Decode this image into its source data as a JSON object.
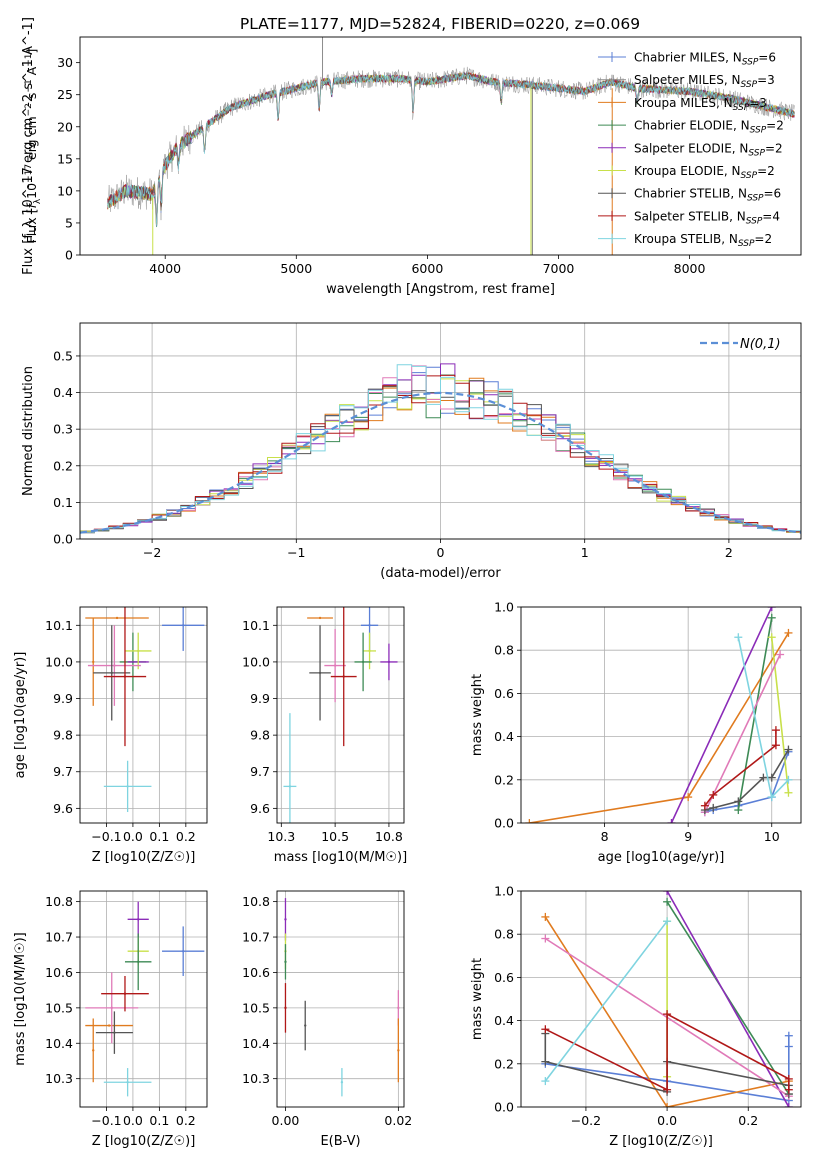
{
  "figure": {
    "title": "PLATE=1177, MJD=52824, FIBERID=0220, z=0.069",
    "colors": {
      "Chabrier MILES": "#5b7fd6",
      "Salpeter MILES": "#8c8c8c",
      "Kroupa MILES": "#e07b1f",
      "Chabrier ELODIE": "#3d8a55",
      "Salpeter ELODIE": "#8b2cb8",
      "Kroupa ELODIE": "#c8e04a",
      "Chabrier STELIB": "#555555",
      "Salpeter STELIB": "#b01818",
      "Kroupa STELIB": "#7fd4e0",
      "Pink series": "#e07ab8",
      "Normal curve": "#5b8fd6"
    }
  },
  "chart_data": [
    {
      "id": "spectrum",
      "type": "line",
      "xlabel": "wavelength [Angstrom, rest frame]",
      "ylabel": "Flux [f_λ 10^-17 erg cm^-2 s^-1 A^-1]",
      "xlim": [
        3350,
        8850
      ],
      "ylim": [
        0,
        34
      ],
      "xticks": [
        4000,
        5000,
        6000,
        7000,
        8000
      ],
      "yticks": [
        0,
        5,
        10,
        15,
        20,
        25,
        30
      ],
      "legend_position": "top-right",
      "legend": [
        {
          "model": "Chabrier MILES",
          "nssp": "6"
        },
        {
          "model": "Salpeter MILES",
          "nssp": "3"
        },
        {
          "model": "Kroupa MILES",
          "nssp": "3"
        },
        {
          "model": "Chabrier ELODIE",
          "nssp": "2"
        },
        {
          "model": "Salpeter ELODIE",
          "nssp": "2"
        },
        {
          "model": "Kroupa ELODIE",
          "nssp": "2"
        },
        {
          "model": "Chabrier STELIB",
          "nssp": "6"
        },
        {
          "model": "Salpeter STELIB",
          "nssp": "4"
        },
        {
          "model": "Kroupa STELIB",
          "nssp": "2"
        }
      ],
      "continuum": {
        "x": [
          3550,
          3700,
          3900,
          4000,
          4100,
          4300,
          4500,
          4800,
          5000,
          5200,
          5500,
          5800,
          6000,
          6300,
          6500,
          6800,
          7000,
          7200,
          7400,
          7600,
          8000,
          8300,
          8500,
          8800
        ],
        "y": [
          8,
          10,
          9.5,
          14,
          17,
          20,
          23,
          25,
          26,
          27,
          27.5,
          27.5,
          27,
          28,
          27,
          26.5,
          26,
          25.5,
          27,
          26,
          25.5,
          24.5,
          23.5,
          22
        ]
      }
    },
    {
      "id": "residuals",
      "type": "histogram",
      "xlabel": "(data-model)/error",
      "ylabel": "Normed distribution",
      "xlim": [
        -2.5,
        2.5
      ],
      "ylim": [
        0,
        0.59
      ],
      "xticks": [
        -2,
        -1,
        0,
        1,
        2
      ],
      "yticks": [
        0.0,
        0.1,
        0.2,
        0.3,
        0.4,
        0.5
      ],
      "grid": true,
      "legend_label": "N(0,1)",
      "legend_position": "top-right"
    },
    {
      "id": "age-vs-Z",
      "type": "scatter",
      "xlabel": "Z [log10(Z/Z☉)]",
      "ylabel": "age  [log10(age/yr)]",
      "xlim": [
        -0.2,
        0.28
      ],
      "ylim": [
        9.56,
        10.15
      ],
      "xticks": [
        -0.1,
        0.0,
        0.1,
        0.2
      ],
      "yticks": [
        9.6,
        9.7,
        9.8,
        9.9,
        10.0,
        10.1
      ],
      "grid": true,
      "points": [
        {
          "model": "Chabrier MILES",
          "x": 0.19,
          "y": 10.1,
          "xerr": 0.08,
          "yerr": 0.07
        },
        {
          "model": "Kroupa MILES",
          "x": -0.06,
          "y": 10.12,
          "xerr": 0.12,
          "yerr": 0.0
        },
        {
          "model": "Kroupa MILES",
          "x": -0.15,
          "y": 10.0,
          "xerr": 0.0,
          "yerr": 0.12
        },
        {
          "model": "Chabrier ELODIE",
          "x": 0.0,
          "y": 10.0,
          "xerr": 0.05,
          "yerr": 0.08
        },
        {
          "model": "Salpeter ELODIE",
          "x": 0.02,
          "y": 10.0,
          "xerr": 0.04,
          "yerr": 0.0
        },
        {
          "model": "Kroupa ELODIE",
          "x": 0.02,
          "y": 10.03,
          "xerr": 0.05,
          "yerr": 0.05
        },
        {
          "model": "Pink series",
          "x": -0.07,
          "y": 9.99,
          "xerr": 0.1,
          "yerr": 0.11
        },
        {
          "model": "Chabrier STELIB",
          "x": -0.08,
          "y": 9.97,
          "xerr": 0.07,
          "yerr": 0.13
        },
        {
          "model": "Salpeter STELIB",
          "x": -0.03,
          "y": 9.96,
          "xerr": 0.08,
          "yerr": 0.19
        },
        {
          "model": "Kroupa STELIB",
          "x": -0.02,
          "y": 9.66,
          "xerr": 0.09,
          "yerr": 0.07
        }
      ]
    },
    {
      "id": "age-vs-mass",
      "type": "scatter",
      "xlabel": "mass [log10(M/M☉)]",
      "xlim": [
        10.23,
        10.82
      ],
      "ylim": [
        9.56,
        10.15
      ],
      "xticks": [
        10.25,
        10.5,
        10.75
      ],
      "yticks": [
        9.6,
        9.7,
        9.8,
        9.9,
        10.0,
        10.1
      ],
      "grid": true,
      "points": [
        {
          "model": "Chabrier MILES",
          "x": 10.66,
          "y": 10.1,
          "xerr": 0.04,
          "yerr": 0.07
        },
        {
          "model": "Kroupa MILES",
          "x": 10.43,
          "y": 10.12,
          "xerr": 0.06,
          "yerr": 0.0
        },
        {
          "model": "Salpeter ELODIE",
          "x": 10.75,
          "y": 10.0,
          "xerr": 0.04,
          "yerr": 0.05
        },
        {
          "model": "Kroupa ELODIE",
          "x": 10.66,
          "y": 10.03,
          "xerr": 0.03,
          "yerr": 0.05
        },
        {
          "model": "Chabrier ELODIE",
          "x": 10.63,
          "y": 10.0,
          "xerr": 0.04,
          "yerr": 0.08
        },
        {
          "model": "Pink series",
          "x": 10.5,
          "y": 9.99,
          "xerr": 0.05,
          "yerr": 0.1
        },
        {
          "model": "Chabrier STELIB",
          "x": 10.43,
          "y": 9.97,
          "xerr": 0.05,
          "yerr": 0.13
        },
        {
          "model": "Salpeter STELIB",
          "x": 10.54,
          "y": 9.96,
          "xerr": 0.06,
          "yerr": 0.19
        },
        {
          "model": "Kroupa STELIB",
          "x": 10.29,
          "y": 9.66,
          "xerr": 0.03,
          "yerr": 0.2
        }
      ]
    },
    {
      "id": "weight-vs-age",
      "type": "line",
      "xlabel": "age  [log10(age/yr)]",
      "ylabel": "mass weight",
      "xlim": [
        7.0,
        10.35
      ],
      "ylim": [
        0,
        1.0
      ],
      "xticks": [
        8,
        9,
        10
      ],
      "yticks": [
        0.0,
        0.2,
        0.4,
        0.6,
        0.8,
        1.0
      ],
      "grid": true,
      "series": [
        {
          "model": "Chabrier MILES",
          "x": [
            9.2,
            9.3,
            9.6,
            10.0,
            10.2
          ],
          "y": [
            0.05,
            0.06,
            0.08,
            0.12,
            0.33
          ]
        },
        {
          "model": "Kroupa MILES",
          "x": [
            7.1,
            9.0,
            10.2
          ],
          "y": [
            0.0,
            0.12,
            0.88
          ]
        },
        {
          "model": "Chabrier ELODIE",
          "x": [
            9.6,
            10.0
          ],
          "y": [
            0.06,
            0.95
          ]
        },
        {
          "model": "Salpeter ELODIE",
          "x": [
            8.8,
            10.0
          ],
          "y": [
            0.0,
            1.0
          ]
        },
        {
          "model": "Kroupa ELODIE",
          "x": [
            10.0,
            10.2
          ],
          "y": [
            0.86,
            0.14
          ]
        },
        {
          "model": "Pink series",
          "x": [
            9.2,
            10.1
          ],
          "y": [
            0.05,
            0.78
          ]
        },
        {
          "model": "Chabrier STELIB",
          "x": [
            9.2,
            9.3,
            9.6,
            9.9,
            10.0,
            10.2
          ],
          "y": [
            0.06,
            0.07,
            0.1,
            0.21,
            0.21,
            0.34
          ]
        },
        {
          "model": "Salpeter STELIB",
          "x": [
            9.2,
            9.3,
            10.05,
            10.05
          ],
          "y": [
            0.08,
            0.13,
            0.36,
            0.43
          ]
        },
        {
          "model": "Kroupa STELIB",
          "x": [
            9.6,
            10.0,
            10.2
          ],
          "y": [
            0.86,
            0.12,
            0.2
          ]
        }
      ]
    },
    {
      "id": "mass-vs-Z",
      "type": "scatter",
      "xlabel": "Z [log10(Z/Z☉)]",
      "ylabel": "mass [log10(M/M☉)]",
      "xlim": [
        -0.2,
        0.28
      ],
      "ylim": [
        10.22,
        10.83
      ],
      "xticks": [
        -0.1,
        0.0,
        0.1,
        0.2
      ],
      "yticks": [
        10.3,
        10.4,
        10.5,
        10.6,
        10.7,
        10.8
      ],
      "grid": true,
      "points": [
        {
          "model": "Chabrier MILES",
          "x": 0.19,
          "y": 10.66,
          "xerr": 0.08,
          "yerr": 0.07
        },
        {
          "model": "Kroupa MILES",
          "x": -0.09,
          "y": 10.45,
          "xerr": 0.09,
          "yerr": 0.0
        },
        {
          "model": "Kroupa MILES",
          "x": -0.15,
          "y": 10.38,
          "xerr": 0.0,
          "yerr": 0.09
        },
        {
          "model": "Salpeter ELODIE",
          "x": 0.02,
          "y": 10.75,
          "xerr": 0.04,
          "yerr": 0.05
        },
        {
          "model": "Kroupa ELODIE",
          "x": 0.02,
          "y": 10.66,
          "xerr": 0.04,
          "yerr": 0.04
        },
        {
          "model": "Chabrier ELODIE",
          "x": 0.02,
          "y": 10.63,
          "xerr": 0.05,
          "yerr": 0.08
        },
        {
          "model": "Pink series",
          "x": -0.08,
          "y": 10.5,
          "xerr": 0.1,
          "yerr": 0.1
        },
        {
          "model": "Chabrier STELIB",
          "x": -0.07,
          "y": 10.43,
          "xerr": 0.07,
          "yerr": 0.06
        },
        {
          "model": "Salpeter STELIB",
          "x": -0.03,
          "y": 10.54,
          "xerr": 0.09,
          "yerr": 0.05
        },
        {
          "model": "Kroupa STELIB",
          "x": -0.02,
          "y": 10.29,
          "xerr": 0.09,
          "yerr": 0.04
        }
      ]
    },
    {
      "id": "mass-vs-ebv",
      "type": "scatter",
      "xlabel": "E(B-V)",
      "xlim": [
        -0.0015,
        0.021
      ],
      "ylim": [
        10.22,
        10.83
      ],
      "xticks": [
        0.0,
        0.02
      ],
      "yticks": [
        10.3,
        10.4,
        10.5,
        10.6,
        10.7,
        10.8
      ],
      "grid": true,
      "points": [
        {
          "model": "Salpeter ELODIE",
          "x": 0.0,
          "y": 10.75,
          "xerr": 0.0,
          "yerr": 0.06
        },
        {
          "model": "Kroupa ELODIE",
          "x": 0.0,
          "y": 10.66,
          "xerr": 0.0,
          "yerr": 0.05
        },
        {
          "model": "Chabrier ELODIE",
          "x": 0.0,
          "y": 10.63,
          "xerr": 0.0,
          "yerr": 0.05
        },
        {
          "model": "Salpeter STELIB",
          "x": 0.0,
          "y": 10.5,
          "xerr": 0.0,
          "yerr": 0.07
        },
        {
          "model": "Chabrier STELIB",
          "x": 0.0035,
          "y": 10.45,
          "xerr": 0.0,
          "yerr": 0.07
        },
        {
          "model": "Kroupa STELIB",
          "x": 0.01,
          "y": 10.29,
          "xerr": 0.0,
          "yerr": 0.04
        },
        {
          "model": "Pink series",
          "x": 0.02,
          "y": 10.5,
          "xerr": 0.0,
          "yerr": 0.05
        },
        {
          "model": "Kroupa MILES",
          "x": 0.02,
          "y": 10.38,
          "xerr": 0.0,
          "yerr": 0.09
        }
      ]
    },
    {
      "id": "weight-vs-Z",
      "type": "line",
      "xlabel": "Z [log10(Z/Z☉)]",
      "ylabel": "mass weight",
      "xlim": [
        -0.36,
        0.33
      ],
      "ylim": [
        0,
        1.0
      ],
      "xticks": [
        -0.2,
        0.0,
        0.2
      ],
      "yticks": [
        0.0,
        0.2,
        0.4,
        0.6,
        0.8,
        1.0
      ],
      "grid": true,
      "series": [
        {
          "model": "Chabrier MILES",
          "x": [
            -0.3,
            0.0,
            0.3,
            0.3,
            0.3
          ],
          "y": [
            0.2,
            0.12,
            0.03,
            0.28,
            0.33
          ]
        },
        {
          "model": "Kroupa MILES",
          "x": [
            -0.3,
            0.0,
            0.3
          ],
          "y": [
            0.88,
            0.0,
            0.12
          ]
        },
        {
          "model": "Chabrier ELODIE",
          "x": [
            0.0,
            0.3
          ],
          "y": [
            0.95,
            0.06
          ]
        },
        {
          "model": "Salpeter ELODIE",
          "x": [
            0.0,
            0.3
          ],
          "y": [
            1.0,
            0.0
          ]
        },
        {
          "model": "Kroupa ELODIE",
          "x": [
            0.0,
            0.0
          ],
          "y": [
            0.86,
            0.14
          ]
        },
        {
          "model": "Pink series",
          "x": [
            -0.3,
            0.3
          ],
          "y": [
            0.78,
            0.05
          ]
        },
        {
          "model": "Chabrier STELIB",
          "x": [
            -0.3,
            -0.3,
            0.0,
            0.0,
            0.3,
            0.3
          ],
          "y": [
            0.34,
            0.21,
            0.07,
            0.21,
            0.1,
            0.06
          ]
        },
        {
          "model": "Salpeter STELIB",
          "x": [
            -0.3,
            0.0,
            0.0,
            0.3,
            0.3
          ],
          "y": [
            0.36,
            0.08,
            0.43,
            0.13,
            0.08
          ]
        },
        {
          "model": "Kroupa STELIB",
          "x": [
            -0.3,
            0.0
          ],
          "y": [
            0.12,
            0.86
          ]
        }
      ]
    }
  ]
}
